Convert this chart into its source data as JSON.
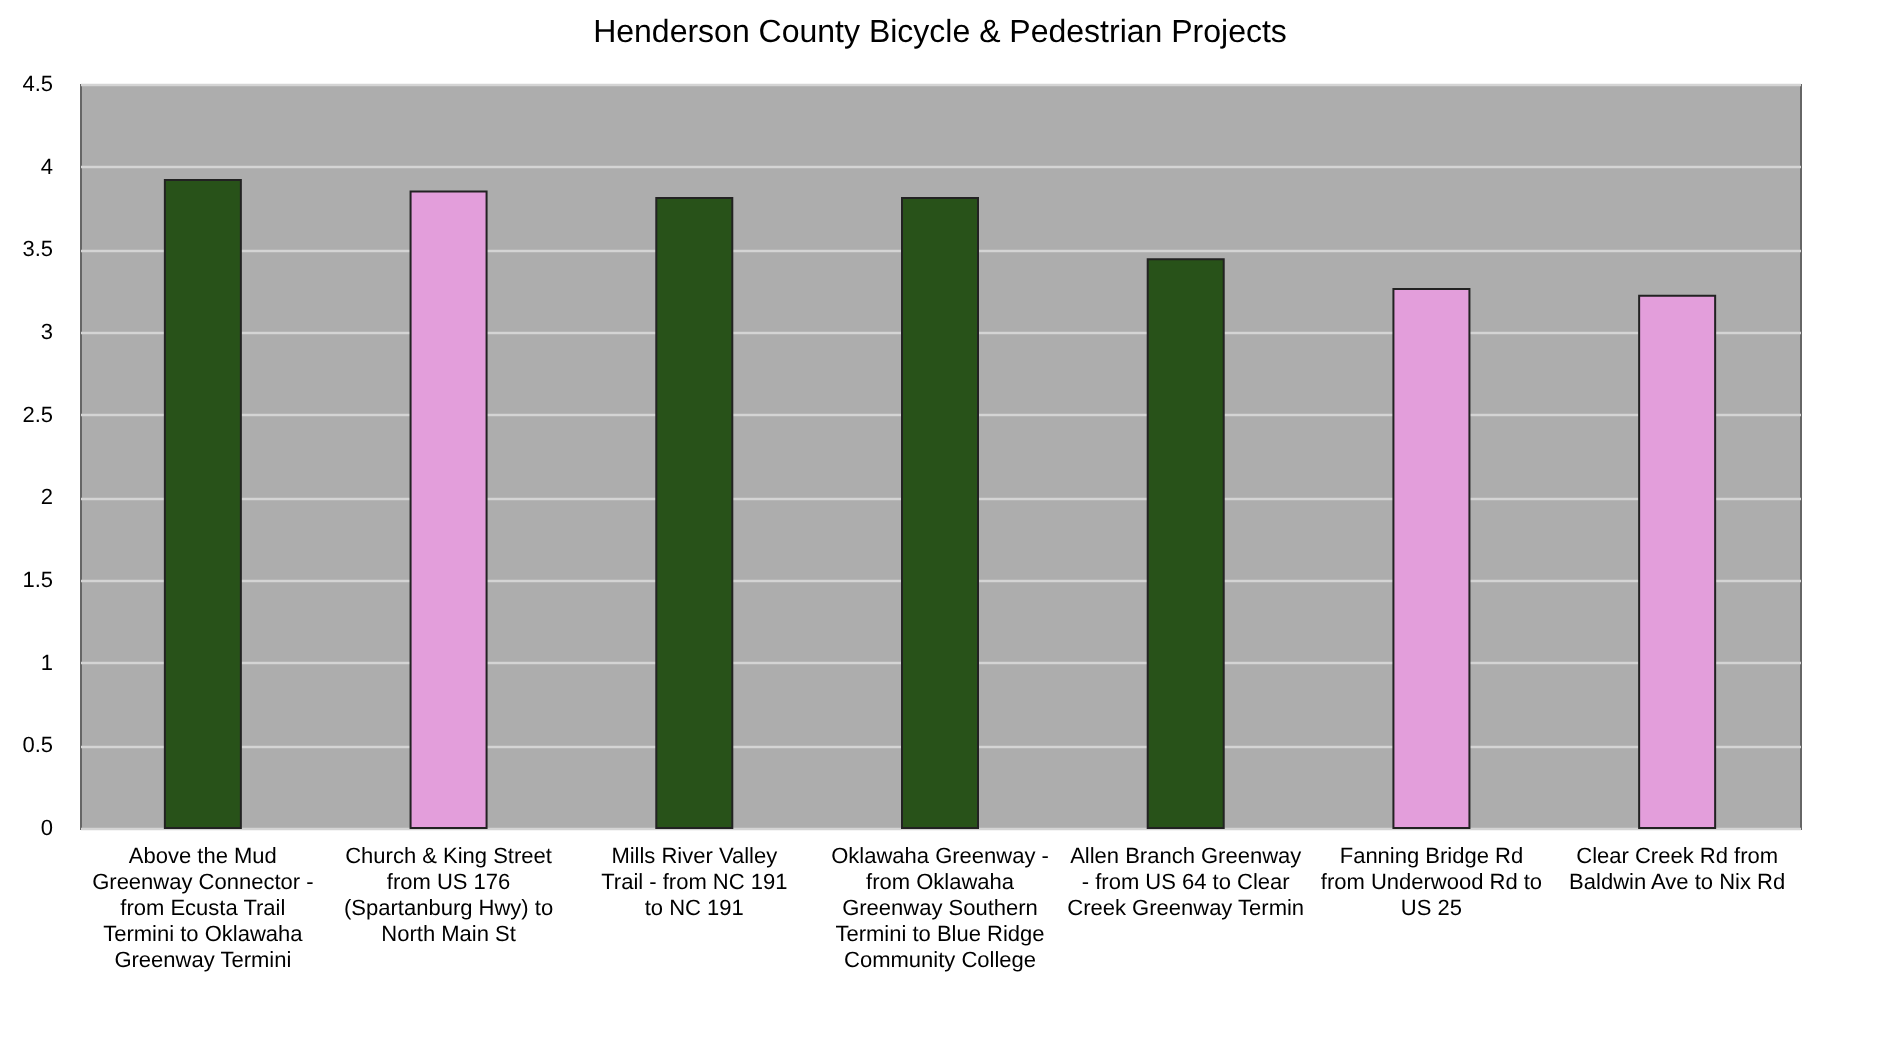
{
  "chart_data": {
    "type": "bar",
    "title": "Henderson County Bicycle & Pedestrian Projects",
    "categories": [
      "Above the Mud Greenway Connector - from Ecusta Trail Termini to Oklawaha Greenway Termini",
      "Church & King Street from US 176 (Spartanburg Hwy) to North Main St",
      "Mills River Valley Trail - from NC 191 to NC 191",
      "Oklawaha Greenway - from Oklawaha Greenway Southern Termini to Blue Ridge Community College",
      "Allen Branch Greenway - from US 64 to Clear Creek Greenway Termin",
      "Fanning Bridge Rd from Underwood Rd to US 25",
      "Clear Creek Rd from Baldwin Ave to Nix Rd"
    ],
    "values": [
      3.92,
      3.85,
      3.81,
      3.81,
      3.44,
      3.26,
      3.22
    ],
    "colors": [
      "#285219",
      "#e39edb",
      "#285219",
      "#285219",
      "#285219",
      "#e39edb",
      "#e39edb"
    ],
    "ylim": [
      0,
      4.5
    ],
    "yticks": [
      0,
      0.5,
      1,
      1.5,
      2,
      2.5,
      3,
      3.5,
      4,
      4.5
    ],
    "grid": "y"
  }
}
